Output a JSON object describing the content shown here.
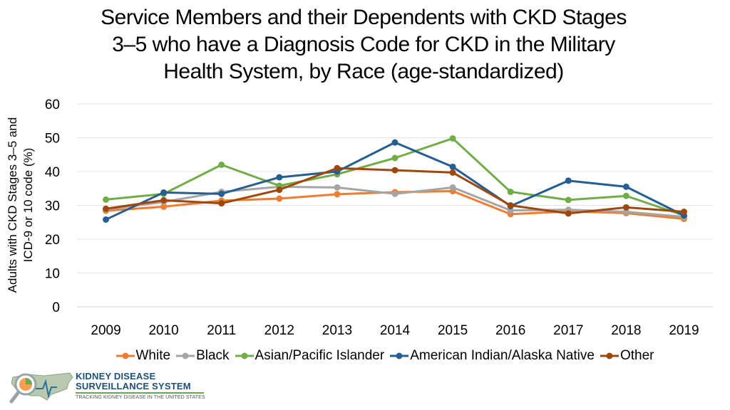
{
  "chart_data": {
    "type": "line",
    "title_lines": [
      "Service Members and their Dependents with CKD Stages",
      "3–5 who have a Diagnosis Code for CKD in the Military",
      "Health System, by Race (age-standardized)"
    ],
    "ylabel_lines": [
      "Adults with CKD Stages 3–5 and",
      "ICD-9 or 10 code (%)"
    ],
    "xlabel": "",
    "categories": [
      "2009",
      "2010",
      "2011",
      "2012",
      "2013",
      "2014",
      "2015",
      "2016",
      "2017",
      "2018",
      "2019"
    ],
    "ylim": [
      0,
      60
    ],
    "yticks": [
      0,
      10,
      20,
      30,
      40,
      50,
      60
    ],
    "grid": true,
    "legend_position": "bottom",
    "series": [
      {
        "name": "White",
        "color": "#ed7d31",
        "values": [
          28.4,
          29.6,
          31.4,
          32.0,
          33.3,
          33.9,
          34.2,
          27.4,
          28.2,
          27.7,
          26.0
        ]
      },
      {
        "name": "Black",
        "color": "#a5a5a5",
        "values": [
          28.8,
          31.0,
          34.0,
          35.5,
          35.3,
          33.4,
          35.3,
          28.5,
          28.7,
          28.1,
          26.6
        ]
      },
      {
        "name": "Asian/Pacific Islander",
        "color": "#70ad47",
        "values": [
          31.7,
          33.4,
          42.0,
          35.8,
          39.2,
          44.0,
          49.8,
          34.0,
          31.6,
          32.8,
          27.0
        ]
      },
      {
        "name": "American Indian/Alaska Native",
        "color": "#255e91",
        "values": [
          25.8,
          33.8,
          33.4,
          38.3,
          40.0,
          48.6,
          41.4,
          29.8,
          37.3,
          35.5,
          27.0
        ]
      },
      {
        "name": "Other",
        "color": "#9e480e",
        "values": [
          29.0,
          31.5,
          30.6,
          34.6,
          41.0,
          40.4,
          39.7,
          30.0,
          27.6,
          29.4,
          28.1
        ]
      }
    ]
  },
  "logo": {
    "line1": "KIDNEY DISEASE",
    "line2": "SURVEILLANCE SYSTEM",
    "tagline": "TRACKING KIDNEY DISEASE IN THE UNITED STATES"
  }
}
